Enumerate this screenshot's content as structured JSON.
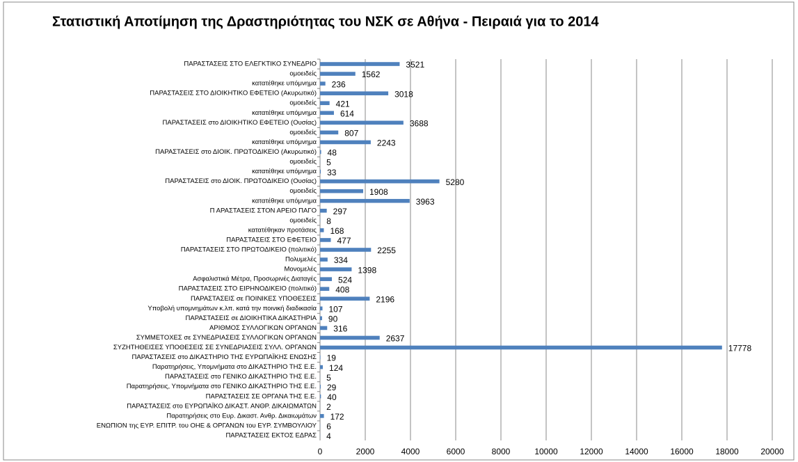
{
  "chart_data": {
    "type": "barh",
    "title": "Στατιστική Αποτίμηση της Δραστηριότητας του ΝΣΚ σε Αθήνα - Πειραιά για το 2014",
    "categories": [
      "ΠΑΡΑΣΤΑΣΕΙΣ ΣΤΟ ΕΛΕΓΚΤΙΚΟ ΣΥΝΕΔΡΙΟ",
      "ομοειδείς",
      "κατατέθηκε υπόμνημα",
      "ΠΑΡΑΣΤΑΣΕΙΣ ΣΤΟ ΔΙΟΙΚΗΤΙΚΟ ΕΦΕΤΕΙΟ (Ακυρωτικό)",
      "ομοειδείς",
      "κατατέθηκε υπόμνημα",
      "ΠΑΡΑΣΤΑΣΕΙΣ στο ΔΙΟΙΚΗΤΙΚΟ ΕΦΕΤΕΙΟ (Ουσίας)",
      "ομοειδείς",
      "κατατέθηκε υπόμνημα",
      "ΠΑΡΑΣΤΑΣΕΙΣ στο ΔΙΟΙΚ. ΠΡΩΤΟΔΙΚΕΙΟ (Ακυρωτικό)",
      "ομοειδείς",
      "κατατέθηκε υπόμνημα",
      "ΠΑΡΑΣΤΑΣΕΙΣ στο ΔΙΟΙΚ. ΠΡΩΤΟΔΙΚΕΙΟ (Ουσίας)",
      "ομοειδείς",
      "κατατέθηκε υπόμνημα",
      "Π ΑΡΑΣΤΑΣΕΙΣ ΣΤΟΝ ΑΡΕΙΟ ΠΑΓΟ",
      "ομοειδείς",
      "κατατέθηκαν προτάσεις",
      "ΠΑΡΑΣΤΑΣΕΙΣ ΣΤΟ ΕΦΕΤΕΙΟ",
      "ΠΑΡΑΣΤΑΣΕΙΣ ΣΤΟ ΠΡΩΤΟΔΙΚΕΙΟ (πολιτικό)",
      "Πολυμελές",
      "Μονομελές",
      "Ασφαλιστικά Μέτρα, Προσωρινές Διαταγές",
      "ΠΑΡΑΣΤΑΣΕΙΣ ΣΤΟ ΕΙΡΗΝΟΔΙΚΕΙΟ (πολιτικό)",
      "ΠΑΡΑΣΤΑΣΕΙΣ σε ΠΟΙΝΙΚΕΣ ΥΠΟΘΕΣΕΙΣ",
      "Υποβολή υπομνημάτων κ.λπ. κατά την ποινική διαδικασία",
      "ΠΑΡΑΣΤΑΣΕΙΣ σε ΔΙΟΙΚΗΤΙΚΑ ΔΙΚΑΣΤΗΡΙΑ",
      "ΑΡΙΘΜΟΣ ΣΥΛΛΟΓΙΚΩΝ ΟΡΓΑΝΩΝ",
      "ΣΥΜΜΕΤΟΧΕΣ σε ΣΥΝΕΔΡΙΑΣΕΙΣ ΣΥΛΛΟΓΙΚΩΝ ΟΡΓΑΝΩΝ",
      "ΣΥΖΗΤΗΘΕΙΣΕΣ ΥΠΟΘΕΣΕΙΣ ΣΕ ΣΥΝΕΔΡΙΑΣΕΙΣ ΣΥΛΛ. ΟΡΓΑΝΩΝ",
      "ΠΑΡΑΣΤΑΣΕΙΣ στο ΔΙΚΑΣΤΗΡΙΟ ΤΗΣ ΕΥΡΩΠΑΪΚΗΣ ΕΝΩΣΗΣ",
      "Παρατηρήσεις, Υπομνήματα στο ΔΙΚΑΣΤΗΡΙΟ ΤΗΣ Ε.Ε.",
      "ΠΑΡΑΣΤΑΣΕΙΣ στο ΓΕΝΙΚΟ ΔΙΚΑΣΤΗΡΙΟ  ΤΗΣ Ε.Ε.",
      "Παρατηρήσεις, Υπομνήματα στο ΓΕΝΙΚΟ ΔΙΚΑΣΤΗΡΙΟ ΤΗΣ Ε.Ε.",
      "ΠΑΡΑΣΤΑΣΕΙΣ  ΣΕ ΟΡΓΑΝΑ ΤΗΣ Ε.Ε.",
      "ΠΑΡΑΣΤΑΣΕΙΣ στο ΕΥΡΩΠΑΪΚΟ ΔΙΚΑΣΤ. ΑΝΘΡ. ΔΙΚΑΙΩΜΑΤΩΝ",
      "Παρατηρήσεις στο Ευρ. Δικαστ. Ανθρ. Δικαιωμάτων",
      "ΕΝΩΠΙΟΝ της ΕΥΡ. ΕΠΙΤΡ. του ΟΗΕ & ΟΡΓΑΝΩΝ του ΕΥΡ. ΣΥΜΒΟΥΛΙΟΥ",
      "ΠΑΡΑΣΤΑΣΕΙΣ ΕΚΤΟΣ ΕΔΡΑΣ"
    ],
    "values": [
      3521,
      1562,
      236,
      3018,
      421,
      614,
      3688,
      807,
      2243,
      48,
      5,
      33,
      5280,
      1908,
      3963,
      297,
      8,
      168,
      477,
      2255,
      334,
      1398,
      524,
      408,
      2196,
      107,
      90,
      316,
      2637,
      17778,
      19,
      124,
      5,
      29,
      40,
      2,
      172,
      6,
      4
    ],
    "color": "#4f81bd",
    "xlim": [
      0,
      20000
    ],
    "xticks": [
      0,
      2000,
      4000,
      6000,
      8000,
      10000,
      12000,
      14000,
      16000,
      18000,
      20000
    ],
    "grid": true
  }
}
